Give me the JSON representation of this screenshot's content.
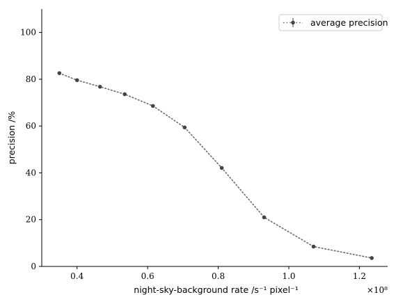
{
  "chart_data": {
    "type": "line",
    "title": "",
    "xlabel": "night-sky-background rate /s⁻¹ pixel⁻¹",
    "ylabel": "precision /%",
    "x_multiplier": "×10⁸",
    "xlim": [
      0.3,
      1.28
    ],
    "ylim": [
      0,
      110
    ],
    "xticks": [
      0.4,
      0.6,
      0.8,
      1.0,
      1.2
    ],
    "xtick_labels": [
      "0.4",
      "0.6",
      "0.8",
      "1.0",
      "1.2"
    ],
    "yticks": [
      0,
      20,
      40,
      60,
      80,
      100
    ],
    "ytick_labels": [
      "0",
      "20",
      "40",
      "60",
      "80",
      "100"
    ],
    "grid": false,
    "legend_position": "top-right",
    "series": [
      {
        "name": "average precision",
        "color": "#444444",
        "line_style": "dotted",
        "x": [
          0.35,
          0.4,
          0.465,
          0.535,
          0.615,
          0.705,
          0.81,
          0.93,
          1.07,
          1.235
        ],
        "y": [
          82.6,
          79.6,
          76.8,
          73.6,
          68.6,
          59.4,
          42.1,
          21.0,
          8.5,
          3.6
        ]
      }
    ]
  }
}
